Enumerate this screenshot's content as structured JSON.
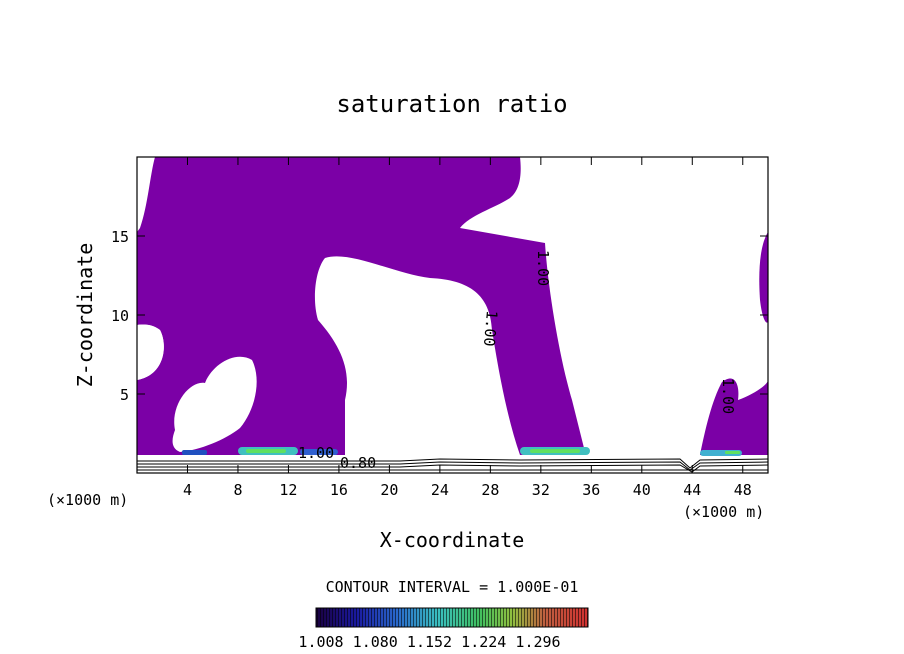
{
  "chart_data": {
    "type": "contour",
    "title": "saturation ratio",
    "xlabel": "X-coordinate",
    "ylabel": "Z-coordinate",
    "x_unit_left": "(×1000 m)",
    "x_unit_right": "(×1000 m)",
    "xlim": [
      0,
      50
    ],
    "ylim": [
      0,
      20
    ],
    "xticks": [
      4,
      8,
      12,
      16,
      20,
      24,
      28,
      32,
      36,
      40,
      44,
      48
    ],
    "yticks": [
      5,
      10,
      15
    ],
    "contour_interval_text": "CONTOUR INTERVAL = 1.000E-01",
    "contour_labels": [
      "1.00",
      "1.00",
      "1.00",
      "1.00",
      "0.80"
    ],
    "fill_color": "#7b00a6",
    "colorbar": {
      "tick_labels": [
        "1.008",
        "1.080",
        "1.152",
        "1.224",
        "1.296"
      ],
      "range": [
        1.0,
        1.3
      ]
    },
    "regions": [
      {
        "name": "supersaturated-left",
        "x_range": [
          0,
          36.5
        ],
        "z_range": [
          1.2,
          20
        ]
      },
      {
        "name": "supersaturated-right",
        "x_range": [
          44.5,
          50
        ],
        "z_range": [
          1.0,
          15
        ]
      }
    ]
  }
}
